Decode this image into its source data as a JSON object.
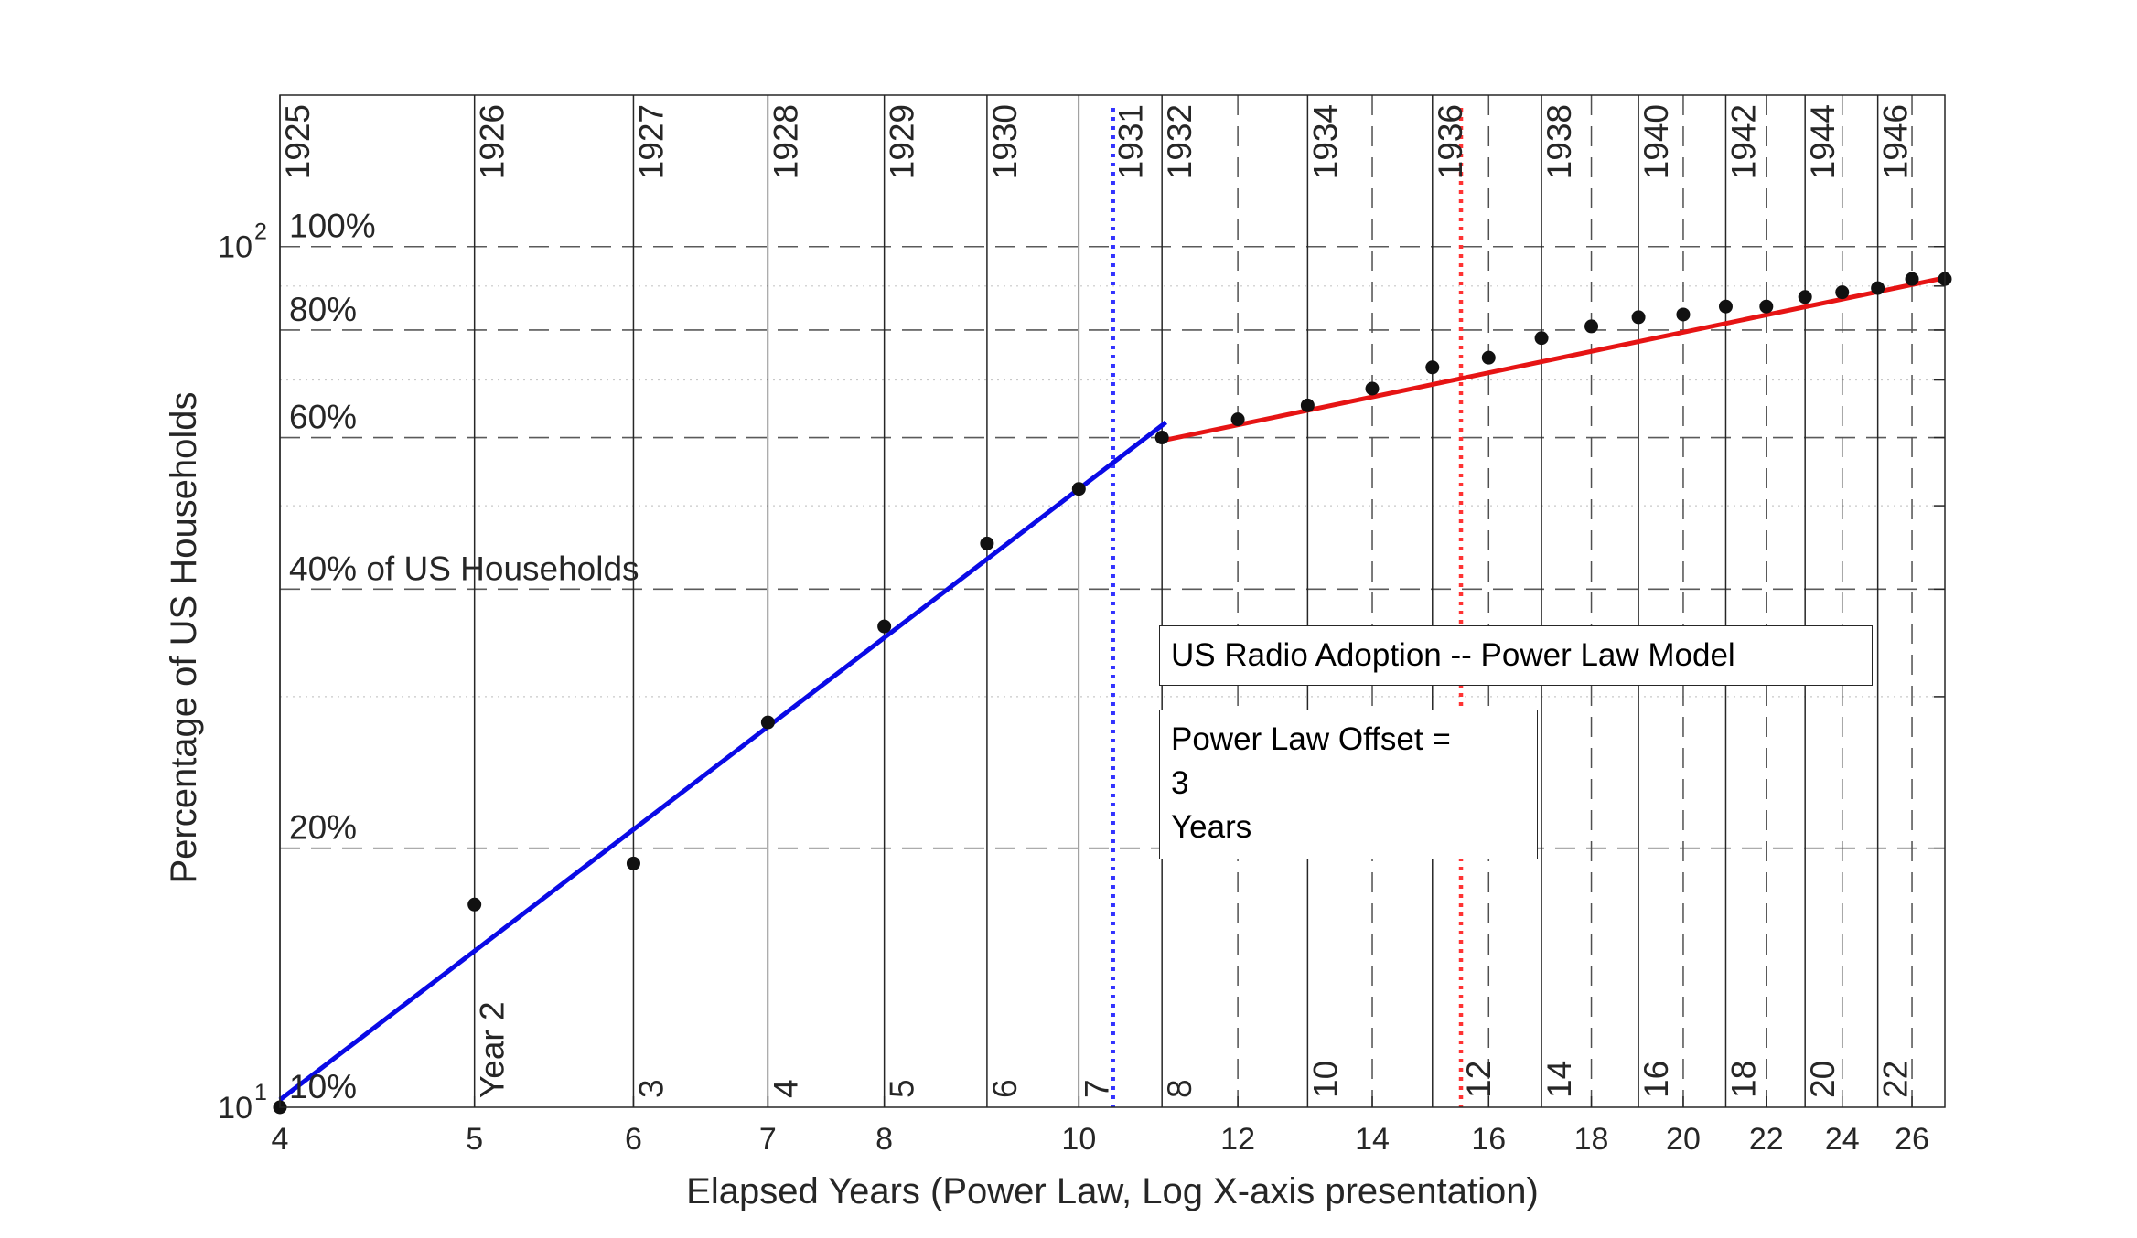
{
  "chart_data": {
    "type": "line",
    "xlabel": "Elapsed Years (Power Law, Log X-axis presentation)",
    "ylabel": "Percentage of US Households",
    "x_scale": "log",
    "y_scale": "log",
    "xlim": [
      4,
      27
    ],
    "ylim": [
      10,
      150
    ],
    "x_ticks": [
      4,
      5,
      6,
      7,
      8,
      10,
      12,
      14,
      16,
      18,
      20,
      22,
      24,
      26
    ],
    "y_ticks": [
      {
        "value": 10,
        "label": "10",
        "exp": "1"
      },
      {
        "value": 100,
        "label": "10",
        "exp": "2"
      }
    ],
    "percent_labels": [
      {
        "value": 10,
        "text": "10%"
      },
      {
        "value": 20,
        "text": "20%"
      },
      {
        "value": 40,
        "text": "40% of US Households"
      },
      {
        "value": 60,
        "text": "60%"
      },
      {
        "value": 80,
        "text": "80%"
      },
      {
        "value": 100,
        "text": "100%"
      }
    ],
    "dashed_h_lines": [
      20,
      40,
      60,
      80,
      100
    ],
    "year_lines": [
      {
        "x": 4,
        "label": "1925",
        "style": "solid"
      },
      {
        "x": 5,
        "label": "1926",
        "style": "solid"
      },
      {
        "x": 6,
        "label": "1927",
        "style": "solid"
      },
      {
        "x": 7,
        "label": "1928",
        "style": "solid"
      },
      {
        "x": 8,
        "label": "1929",
        "style": "solid"
      },
      {
        "x": 9,
        "label": "1930",
        "style": "solid"
      },
      {
        "x": 10,
        "label": "",
        "style": "solid"
      },
      {
        "x": 10.4,
        "label": "1931",
        "style": "none"
      },
      {
        "x": 11,
        "label": "1932",
        "style": "solid"
      },
      {
        "x": 12,
        "label": "",
        "style": "dashed"
      },
      {
        "x": 13,
        "label": "1934",
        "style": "solid"
      },
      {
        "x": 14,
        "label": "",
        "style": "dashed"
      },
      {
        "x": 15,
        "label": "1936",
        "style": "solid"
      },
      {
        "x": 16,
        "label": "",
        "style": "dashed"
      },
      {
        "x": 17,
        "label": "1938",
        "style": "solid"
      },
      {
        "x": 18,
        "label": "",
        "style": "dashed"
      },
      {
        "x": 19,
        "label": "1940",
        "style": "solid"
      },
      {
        "x": 20,
        "label": "",
        "style": "dashed"
      },
      {
        "x": 21,
        "label": "1942",
        "style": "solid"
      },
      {
        "x": 22,
        "label": "",
        "style": "dashed"
      },
      {
        "x": 23,
        "label": "1944",
        "style": "solid"
      },
      {
        "x": 24,
        "label": "",
        "style": "dashed"
      },
      {
        "x": 25,
        "label": "1946",
        "style": "solid"
      },
      {
        "x": 26,
        "label": "",
        "style": "dashed"
      }
    ],
    "bottom_labels": [
      {
        "x": 5,
        "text": "Year 2"
      },
      {
        "x": 6,
        "text": "3"
      },
      {
        "x": 7,
        "text": "4"
      },
      {
        "x": 8,
        "text": "5"
      },
      {
        "x": 9,
        "text": "6"
      },
      {
        "x": 10,
        "text": "7"
      },
      {
        "x": 11,
        "text": "8"
      },
      {
        "x": 13,
        "text": "10"
      },
      {
        "x": 15.5,
        "text": "12"
      },
      {
        "x": 17,
        "text": "14"
      },
      {
        "x": 19,
        "text": "16"
      },
      {
        "x": 21,
        "text": "18"
      },
      {
        "x": 23,
        "text": "20"
      },
      {
        "x": 25,
        "text": "22"
      }
    ],
    "vertical_markers": [
      {
        "x": 10.4,
        "color": "#3333ff"
      },
      {
        "x": 15.5,
        "color": "#ff3333"
      }
    ],
    "observed": {
      "x": [
        4,
        5,
        6,
        7,
        8,
        9,
        10,
        11,
        12,
        13,
        14,
        15,
        16,
        17,
        18,
        19,
        20,
        21,
        22,
        23,
        24,
        25,
        26,
        27
      ],
      "y": [
        10,
        17.2,
        19.2,
        28,
        36.2,
        45.2,
        52.3,
        60,
        63,
        65.4,
        68.4,
        72.4,
        74.3,
        78.3,
        80.8,
        82.8,
        83.4,
        85.2,
        85.2,
        87.4,
        88.5,
        89.5,
        91.7,
        91.7
      ]
    },
    "fits": [
      {
        "color": "#0a0ae6",
        "x": [
          4,
          11.05
        ],
        "y": [
          10.2,
          62.5
        ]
      },
      {
        "color": "#e61414",
        "x": [
          11,
          27
        ],
        "y": [
          59.5,
          92
        ]
      }
    ]
  },
  "legend": {
    "title": "US Radio Adoption -- Power Law Model",
    "offset_lines": [
      "Power Law Offset =",
      "3",
      "Years"
    ]
  }
}
